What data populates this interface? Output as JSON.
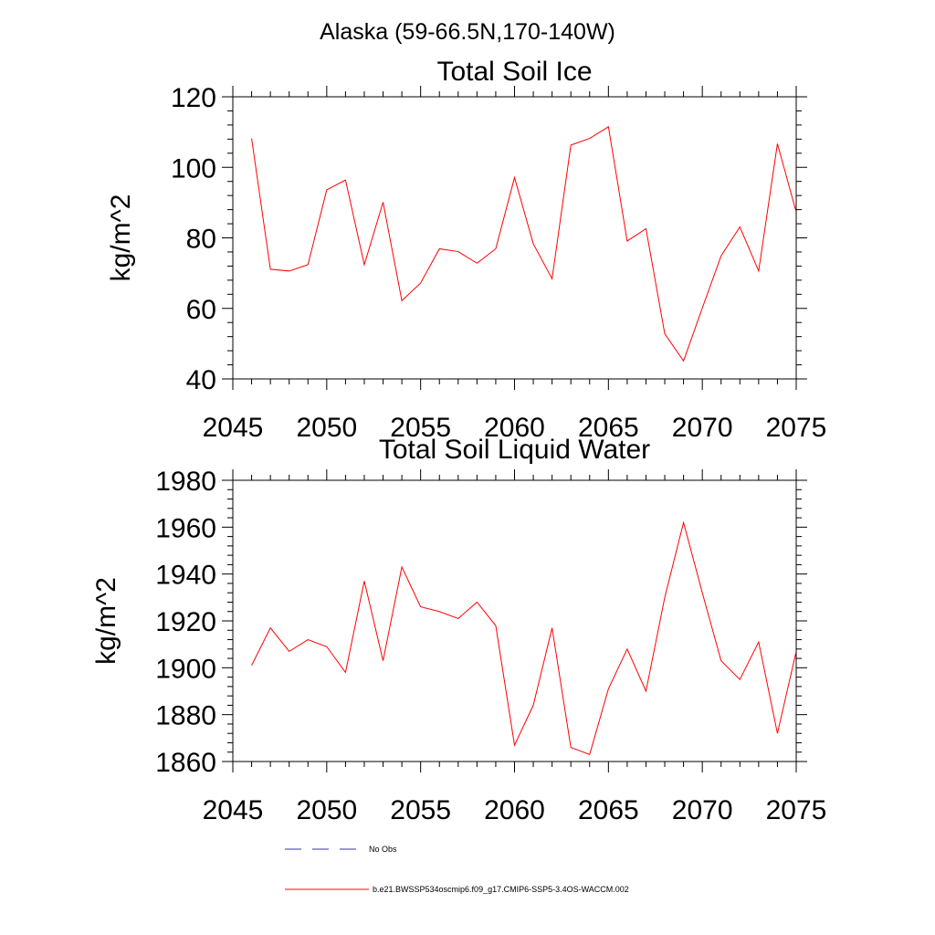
{
  "title": "Alaska (59-66.5N,170-140W)",
  "colors": {
    "series": "#ff0000",
    "obs": "#3333aa",
    "axes": "#000000"
  },
  "legend": {
    "obs_label": "No Obs",
    "model_label": "b.e21.BWSSP534oscmip6.f09_g17.CMIP6-SSP5-3.4OS-WACCM.002"
  },
  "chart_data": [
    {
      "type": "line",
      "title": "Total Soil Ice",
      "xlabel": "",
      "ylabel": "kg/m^2",
      "xlim": [
        2045,
        2075
      ],
      "ylim": [
        40,
        120
      ],
      "xticks": [
        2045,
        2050,
        2055,
        2060,
        2065,
        2070,
        2075
      ],
      "yticks": [
        40,
        60,
        80,
        100,
        120
      ],
      "grid": false,
      "x": [
        2046,
        2047,
        2048,
        2049,
        2050,
        2051,
        2052,
        2053,
        2054,
        2055,
        2056,
        2057,
        2058,
        2059,
        2060,
        2061,
        2062,
        2063,
        2064,
        2065,
        2066,
        2067,
        2068,
        2069,
        2070,
        2071,
        2072,
        2073,
        2074,
        2075
      ],
      "series": [
        {
          "values": [
            108.2,
            71.1,
            70.6,
            72.4,
            93.6,
            96.4,
            72.4,
            90.1,
            62.2,
            67.2,
            76.9,
            76.1,
            72.8,
            76.9,
            97.1,
            78.3,
            68.4,
            106.3,
            108.2,
            111.5,
            79.1,
            82.6,
            52.8,
            45.1,
            60.1,
            74.9,
            83.1,
            70.6,
            106.7,
            87.3
          ]
        }
      ]
    },
    {
      "type": "line",
      "title": "Total Soil Liquid Water",
      "xlabel": "",
      "ylabel": "kg/m^2",
      "xlim": [
        2045,
        2075
      ],
      "ylim": [
        1860,
        1980
      ],
      "xticks": [
        2045,
        2050,
        2055,
        2060,
        2065,
        2070,
        2075
      ],
      "yticks": [
        1860,
        1880,
        1900,
        1920,
        1940,
        1960,
        1980
      ],
      "grid": false,
      "x": [
        2046,
        2047,
        2048,
        2049,
        2050,
        2051,
        2052,
        2053,
        2054,
        2055,
        2056,
        2057,
        2058,
        2059,
        2060,
        2061,
        2062,
        2063,
        2064,
        2065,
        2066,
        2067,
        2068,
        2069,
        2070,
        2071,
        2072,
        2073,
        2074,
        2075
      ],
      "series": [
        {
          "values": [
            1901,
            1917,
            1907,
            1912,
            1909,
            1898,
            1937,
            1903,
            1943,
            1926,
            1924,
            1921,
            1928,
            1918,
            1867,
            1884,
            1917,
            1866,
            1863,
            1891,
            1908,
            1890,
            1930,
            1962,
            1932,
            1903,
            1895,
            1911,
            1872,
            1907
          ]
        }
      ]
    }
  ]
}
